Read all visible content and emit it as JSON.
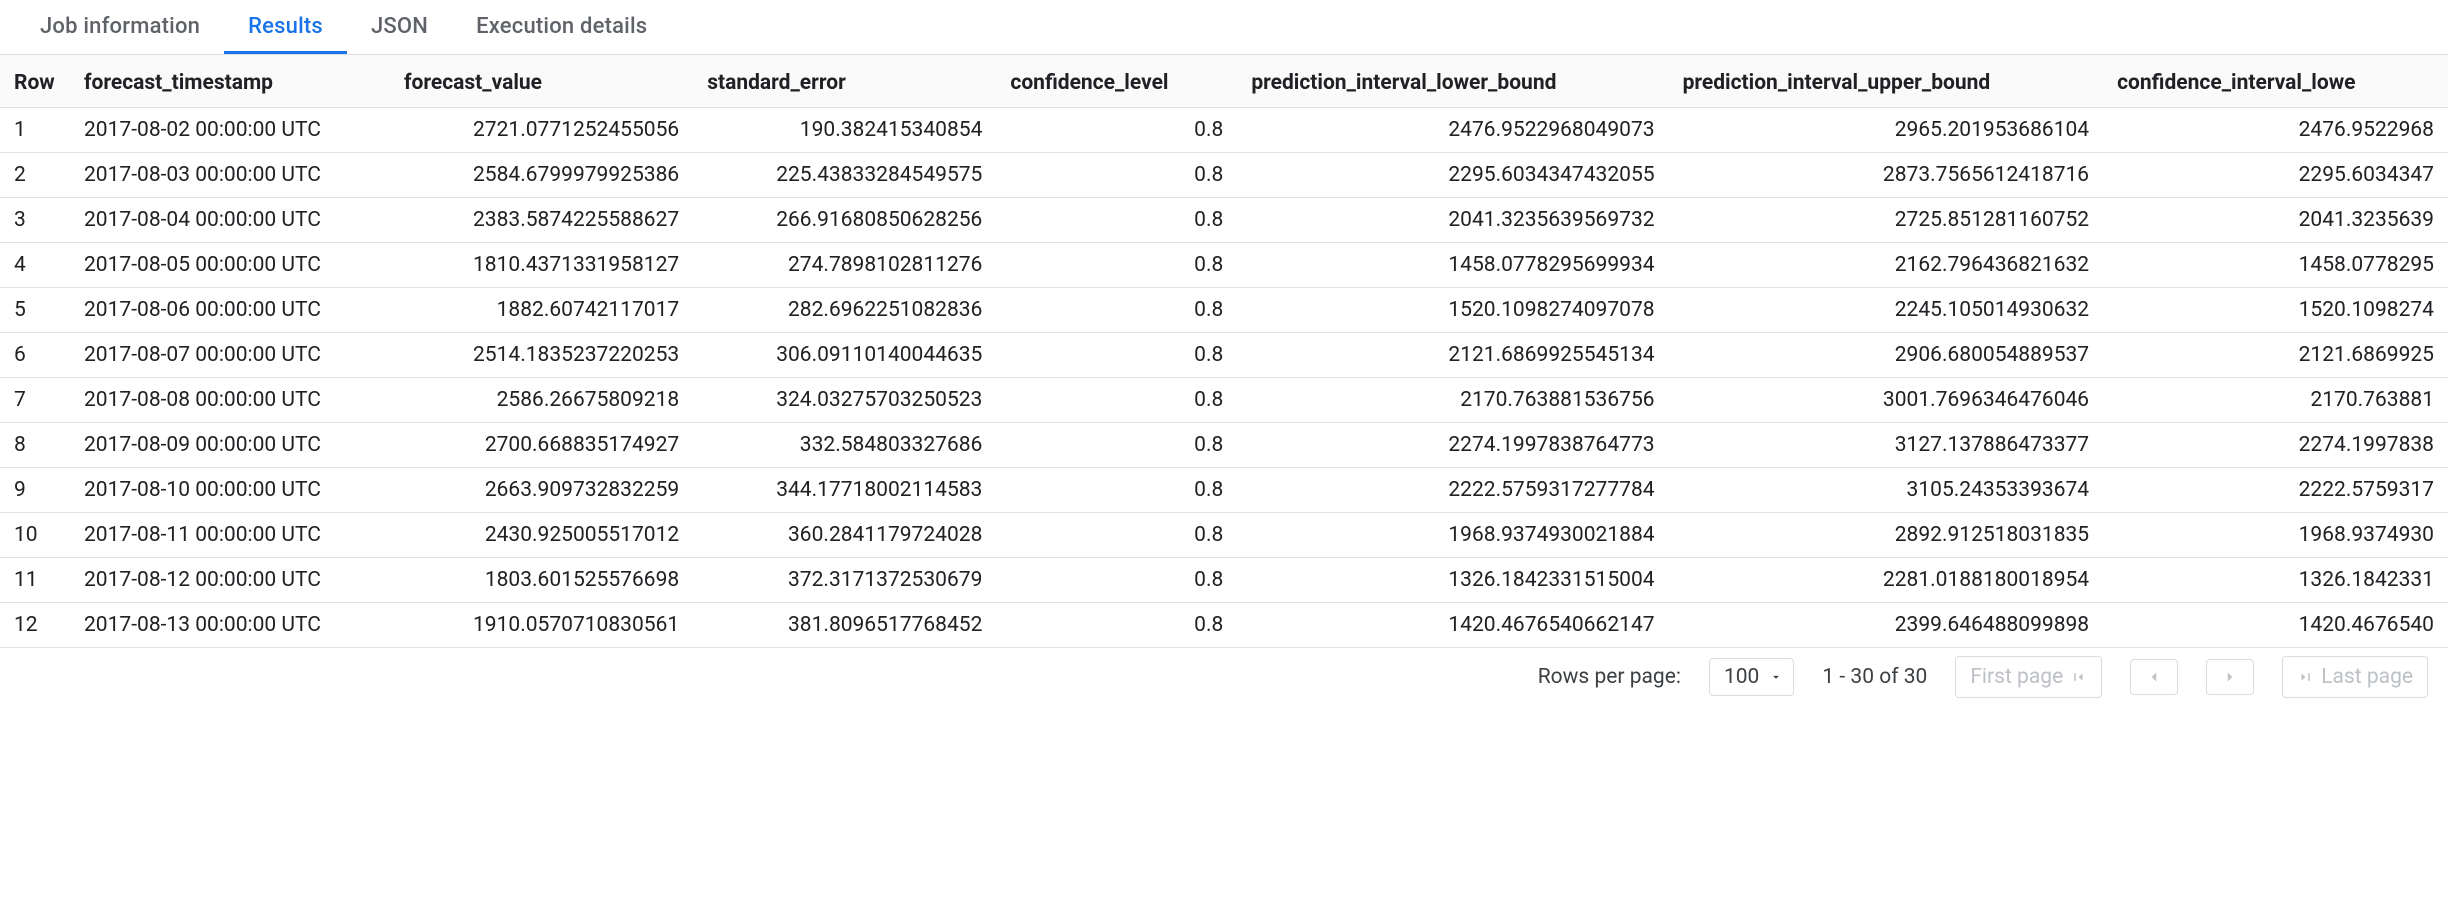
{
  "colors": {
    "accent": "#1a73e8",
    "text_secondary": "#5f6368",
    "border": "#dadce0",
    "row_border": "#e0e0e0",
    "header_bg": "#fafafa"
  },
  "tabs": [
    {
      "label": "Job information",
      "active": false
    },
    {
      "label": "Results",
      "active": true
    },
    {
      "label": "JSON",
      "active": false
    },
    {
      "label": "Execution details",
      "active": false
    }
  ],
  "table": {
    "columns": [
      {
        "key": "row",
        "label": "Row",
        "align": "left"
      },
      {
        "key": "forecast_timestamp",
        "label": "forecast_timestamp",
        "align": "left"
      },
      {
        "key": "forecast_value",
        "label": "forecast_value",
        "align": "right"
      },
      {
        "key": "standard_error",
        "label": "standard_error",
        "align": "right"
      },
      {
        "key": "confidence_level",
        "label": "confidence_level",
        "align": "right"
      },
      {
        "key": "prediction_interval_lower_bound",
        "label": "prediction_interval_lower_bound",
        "align": "right"
      },
      {
        "key": "prediction_interval_upper_bound",
        "label": "prediction_interval_upper_bound",
        "align": "right"
      },
      {
        "key": "confidence_interval_lower",
        "label": "confidence_interval_lowe",
        "align": "right"
      }
    ],
    "rows": [
      [
        "1",
        "2017-08-02 00:00:00 UTC",
        "2721.0771252455056",
        "190.382415340854",
        "0.8",
        "2476.9522968049073",
        "2965.201953686104",
        "2476.9522968"
      ],
      [
        "2",
        "2017-08-03 00:00:00 UTC",
        "2584.6799979925386",
        "225.43833284549575",
        "0.8",
        "2295.6034347432055",
        "2873.7565612418716",
        "2295.6034347"
      ],
      [
        "3",
        "2017-08-04 00:00:00 UTC",
        "2383.5874225588627",
        "266.91680850628256",
        "0.8",
        "2041.3235639569732",
        "2725.851281160752",
        "2041.3235639"
      ],
      [
        "4",
        "2017-08-05 00:00:00 UTC",
        "1810.4371331958127",
        "274.7898102811276",
        "0.8",
        "1458.0778295699934",
        "2162.796436821632",
        "1458.0778295"
      ],
      [
        "5",
        "2017-08-06 00:00:00 UTC",
        "1882.60742117017",
        "282.6962251082836",
        "0.8",
        "1520.1098274097078",
        "2245.105014930632",
        "1520.1098274"
      ],
      [
        "6",
        "2017-08-07 00:00:00 UTC",
        "2514.1835237220253",
        "306.09110140044635",
        "0.8",
        "2121.6869925545134",
        "2906.680054889537",
        "2121.6869925"
      ],
      [
        "7",
        "2017-08-08 00:00:00 UTC",
        "2586.26675809218",
        "324.03275703250523",
        "0.8",
        "2170.763881536756",
        "3001.7696346476046",
        "2170.763881"
      ],
      [
        "8",
        "2017-08-09 00:00:00 UTC",
        "2700.668835174927",
        "332.584803327686",
        "0.8",
        "2274.1997838764773",
        "3127.137886473377",
        "2274.1997838"
      ],
      [
        "9",
        "2017-08-10 00:00:00 UTC",
        "2663.909732832259",
        "344.17718002114583",
        "0.8",
        "2222.5759317277784",
        "3105.24353393674",
        "2222.5759317"
      ],
      [
        "10",
        "2017-08-11 00:00:00 UTC",
        "2430.925005517012",
        "360.2841179724028",
        "0.8",
        "1968.9374930021884",
        "2892.912518031835",
        "1968.9374930"
      ],
      [
        "11",
        "2017-08-12 00:00:00 UTC",
        "1803.601525576698",
        "372.3171372530679",
        "0.8",
        "1326.1842331515004",
        "2281.0188180018954",
        "1326.1842331"
      ],
      [
        "12",
        "2017-08-13 00:00:00 UTC",
        "1910.0570710830561",
        "381.8096517768452",
        "0.8",
        "1420.4676540662147",
        "2399.646488099898",
        "1420.4676540"
      ]
    ]
  },
  "pager": {
    "rows_per_page_label": "Rows per page:",
    "rows_per_page_value": "100",
    "range_text": "1 - 30 of 30",
    "first_label": "First page",
    "last_label": "Last page"
  }
}
